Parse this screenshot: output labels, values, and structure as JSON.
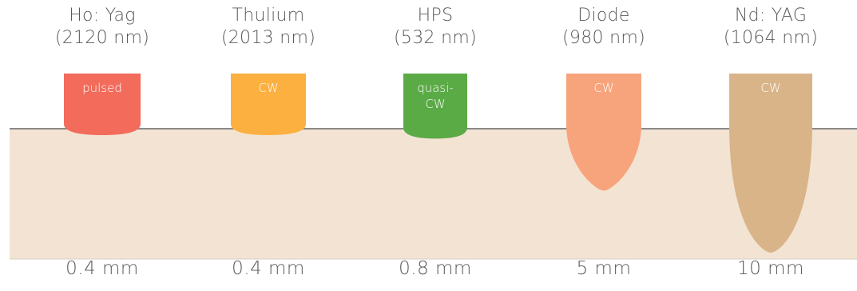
{
  "lasers": [
    {
      "name": "Ho: Yag",
      "wavelength": "(2120 nm)",
      "mode": "pulsed",
      "mode_lines": [
        "pulsed"
      ],
      "depth": "0.4 mm",
      "depth_mm": 0.4,
      "color": "#f26b5b"
    },
    {
      "name": "Thulium",
      "wavelength": "(2013 nm)",
      "mode": "CW",
      "mode_lines": [
        "CW"
      ],
      "depth": "0.4 mm",
      "depth_mm": 0.4,
      "color": "#fbb040"
    },
    {
      "name": "HPS",
      "wavelength": "(532 nm)",
      "mode": "quasi-CW",
      "mode_lines": [
        "quasi-",
        "CW"
      ],
      "depth": "0.8 mm",
      "depth_mm": 0.8,
      "color": "#5aaa46"
    },
    {
      "name": "Diode",
      "wavelength": "(980 nm)",
      "mode": "CW",
      "mode_lines": [
        "CW"
      ],
      "depth": "5 mm",
      "depth_mm": 5,
      "color": "#f7a47c"
    },
    {
      "name": "Nd: YAG",
      "wavelength": "(1064 nm)",
      "mode": "CW",
      "mode_lines": [
        "CW"
      ],
      "depth": "10 mm",
      "depth_mm": 10,
      "color": "#d9b489"
    }
  ],
  "colors": {
    "tissue": "#f3e3d3",
    "tissue_border": "#8a8a8a",
    "text": "#5a5a5a"
  }
}
